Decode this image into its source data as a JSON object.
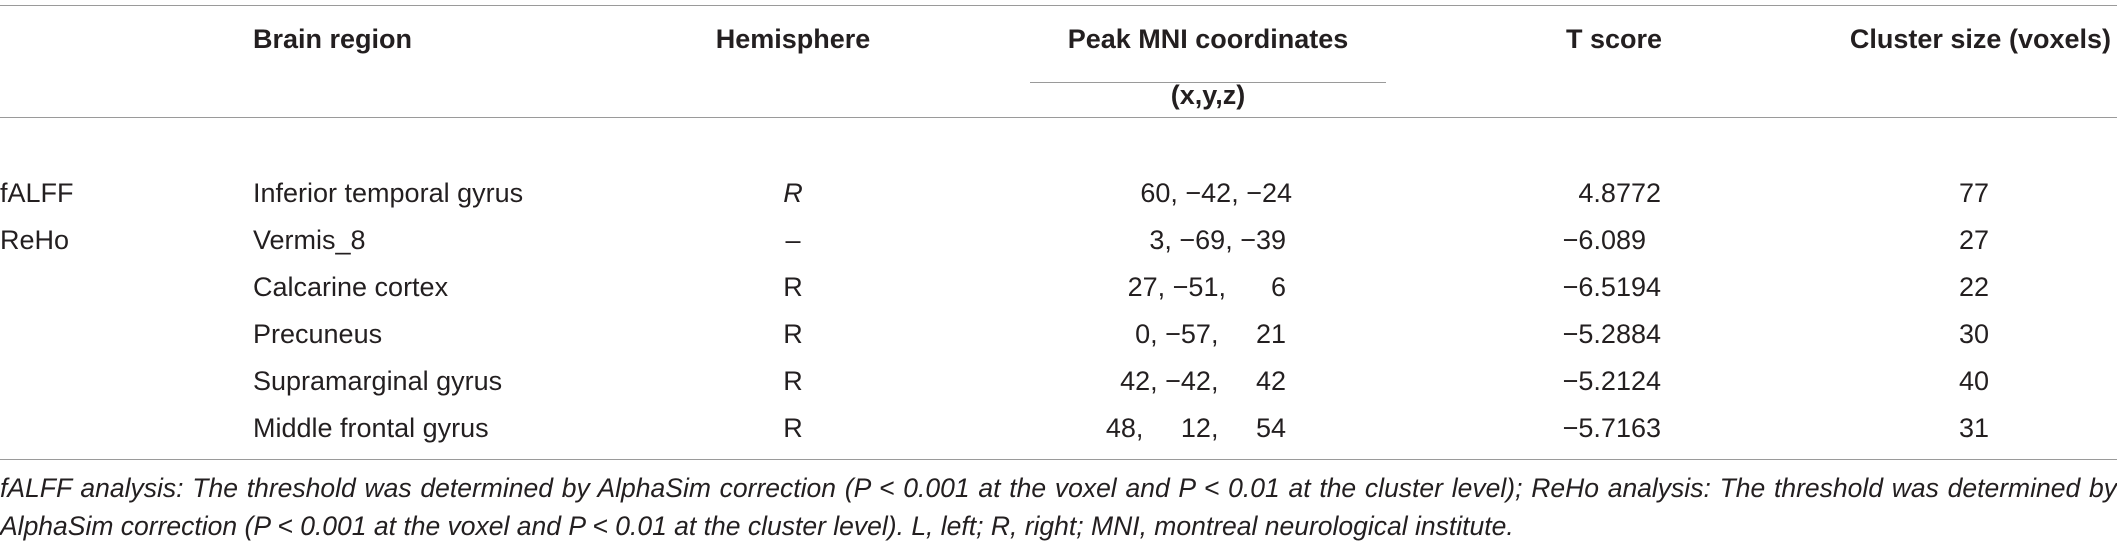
{
  "table": {
    "headers": {
      "brain_region": "Brain region",
      "hemisphere": "Hemisphere",
      "peak_mni": "Peak MNI coordinates",
      "peak_mni_sub": "(x,y,z)",
      "t_score": "T score",
      "cluster_size": "Cluster size (voxels)"
    },
    "rows": [
      {
        "analysis": "fALFF",
        "region": "Inferior temporal gyrus",
        "hemisphere": "R",
        "coords": "60, −42, −24",
        "t": "4.8772",
        "cluster": "77"
      },
      {
        "analysis": "ReHo",
        "region": "Vermis_8",
        "hemisphere": "–",
        "coords": "3, −69, −39",
        "t": "−6.089",
        "cluster": "27"
      },
      {
        "analysis": "",
        "region": "Calcarine cortex",
        "hemisphere": "R",
        "coords": "27, −51,      6",
        "t": "−6.5194",
        "cluster": "22"
      },
      {
        "analysis": "",
        "region": "Precuneus",
        "hemisphere": "R",
        "coords": "0, −57,     21",
        "t": "−5.2884",
        "cluster": "30"
      },
      {
        "analysis": "",
        "region": "Supramarginal gyrus",
        "hemisphere": "R",
        "coords": "42, −42,     42",
        "t": "−5.2124",
        "cluster": "40"
      },
      {
        "analysis": "",
        "region": "Middle frontal gyrus",
        "hemisphere": "R",
        "coords": "48,     12,     54",
        "t": "−5.7163",
        "cluster": "31"
      }
    ]
  },
  "footnote": "fALFF analysis: The threshold was determined by AlphaSim correction (P < 0.001 at the voxel and P < 0.01 at the cluster level); ReHo analysis: The threshold was determined by AlphaSim correction (P < 0.001 at the voxel and P < 0.01 at the cluster level). L, left; R, right; MNI, montreal neurological institute."
}
